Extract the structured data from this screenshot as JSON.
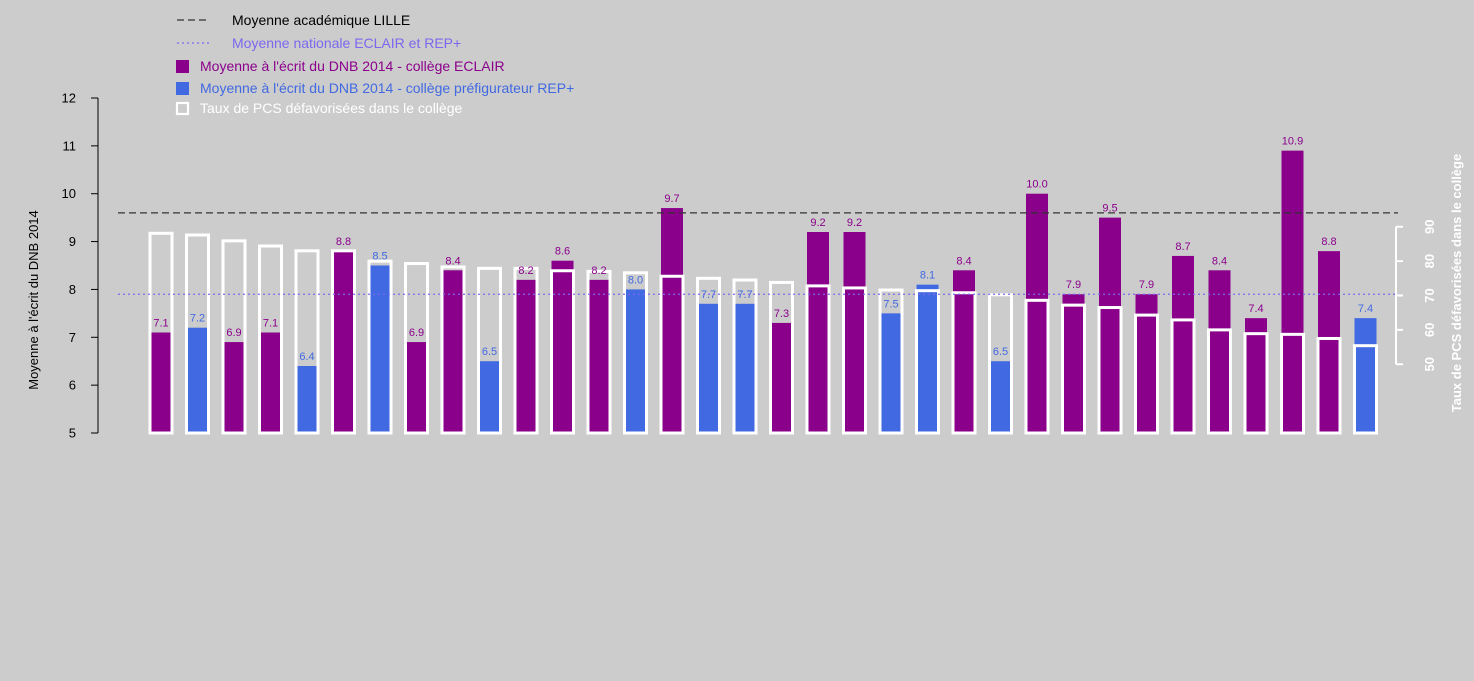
{
  "chart_data": {
    "type": "bar",
    "background": "#cccccc",
    "ylabel": "Moyenne à l'écrit du DNB 2014",
    "ylabel_right": "Taux de PCS défavorisées dans le collège",
    "ylim": [
      5,
      12
    ],
    "y_ticks": [
      5,
      6,
      7,
      8,
      9,
      10,
      11,
      12
    ],
    "y2lim": [
      30,
      110
    ],
    "y2_ticks": [
      50,
      60,
      70,
      80,
      90
    ],
    "legend": [
      {
        "label": "Moyenne académique LILLE",
        "kind": "dashed-line",
        "color": "#333333"
      },
      {
        "label": "Moyenne nationale ECLAIR et REP+",
        "kind": "dotted-line",
        "color": "#7b68ee"
      },
      {
        "label": "Moyenne à l'écrit du DNB 2014 - collège ECLAIR",
        "kind": "box",
        "color": "#8b008b"
      },
      {
        "label": "Moyenne à l'écrit du DNB 2014 - collège préfigurateur REP+",
        "kind": "box",
        "color": "#4169e1"
      },
      {
        "label": "Taux de PCS défavorisées dans le collège",
        "kind": "outline-box",
        "color": "#ffffff"
      }
    ],
    "reference_lines": [
      {
        "name": "Moyenne académique LILLE",
        "value": 9.6,
        "color": "#333333",
        "style": "dashed"
      },
      {
        "name": "Moyenne nationale ECLAIR et REP+",
        "value": 7.9,
        "color": "#7b68ee",
        "style": "dotted"
      }
    ],
    "colors": {
      "eclair": "#8b008b",
      "rep": "#4169e1",
      "pcs": "#ffffff"
    },
    "bars": [
      {
        "value": 7.1,
        "label": "7.1",
        "group": "eclair",
        "pcs": 88.1
      },
      {
        "value": 7.2,
        "label": "7.2",
        "group": "rep",
        "pcs": 87.6
      },
      {
        "value": 6.9,
        "label": "6.9",
        "group": "eclair",
        "pcs": 85.9
      },
      {
        "value": 7.1,
        "label": "7.1",
        "group": "eclair",
        "pcs": 84.4
      },
      {
        "value": 6.4,
        "label": "6.4",
        "group": "rep",
        "pcs": 83.0
      },
      {
        "value": 8.8,
        "label": "8.8",
        "group": "eclair",
        "pcs": 83.0
      },
      {
        "value": 8.5,
        "label": "8.5",
        "group": "rep",
        "pcs": 80.0
      },
      {
        "value": 6.9,
        "label": "6.9",
        "group": "eclair",
        "pcs": 79.3
      },
      {
        "value": 8.4,
        "label": "8.4",
        "group": "eclair",
        "pcs": 78.3
      },
      {
        "value": 6.5,
        "label": "6.5",
        "group": "rep",
        "pcs": 77.9
      },
      {
        "value": 8.2,
        "label": "8.2",
        "group": "eclair",
        "pcs": 77.9
      },
      {
        "value": 8.6,
        "label": "8.6",
        "group": "eclair",
        "pcs": 77.2
      },
      {
        "value": 8.2,
        "label": "8.2",
        "group": "eclair",
        "pcs": 77.0
      },
      {
        "value": 8.0,
        "label": "8.0",
        "group": "rep",
        "pcs": 76.6
      },
      {
        "value": 9.7,
        "label": "9.7",
        "group": "eclair",
        "pcs": 75.6
      },
      {
        "value": 7.7,
        "label": "7.7",
        "group": "rep",
        "pcs": 75.0
      },
      {
        "value": 7.7,
        "label": "7.7",
        "group": "rep",
        "pcs": 74.5
      },
      {
        "value": 7.3,
        "label": "7.3",
        "group": "eclair",
        "pcs": 73.8
      },
      {
        "value": 9.2,
        "label": "9.2",
        "group": "eclair",
        "pcs": 72.8
      },
      {
        "value": 9.2,
        "label": "9.2",
        "group": "eclair",
        "pcs": 72.2
      },
      {
        "value": 7.5,
        "label": "7.5",
        "group": "rep",
        "pcs": 71.6
      },
      {
        "value": 8.1,
        "label": "8.1",
        "group": "rep",
        "pcs": 71.4
      },
      {
        "value": 8.4,
        "label": "8.4",
        "group": "eclair",
        "pcs": 70.8
      },
      {
        "value": 6.5,
        "label": "6.5",
        "group": "rep",
        "pcs": 70.2
      },
      {
        "value": 10.0,
        "label": "10.0",
        "group": "eclair",
        "pcs": 68.6
      },
      {
        "value": 7.9,
        "label": "7.9",
        "group": "eclair",
        "pcs": 67.2
      },
      {
        "value": 9.5,
        "label": "9.5",
        "group": "eclair",
        "pcs": 66.5
      },
      {
        "value": 7.9,
        "label": "7.9",
        "group": "eclair",
        "pcs": 64.3
      },
      {
        "value": 8.7,
        "label": "8.7",
        "group": "eclair",
        "pcs": 62.9
      },
      {
        "value": 8.4,
        "label": "8.4",
        "group": "eclair",
        "pcs": 60.0
      },
      {
        "value": 7.4,
        "label": "7.4",
        "group": "eclair",
        "pcs": 58.9
      },
      {
        "value": 10.9,
        "label": "10.9",
        "group": "eclair",
        "pcs": 58.7
      },
      {
        "value": 8.8,
        "label": "8.8",
        "group": "eclair",
        "pcs": 57.5
      },
      {
        "value": 7.4,
        "label": "7.4",
        "group": "rep",
        "pcs": 55.4
      }
    ]
  }
}
